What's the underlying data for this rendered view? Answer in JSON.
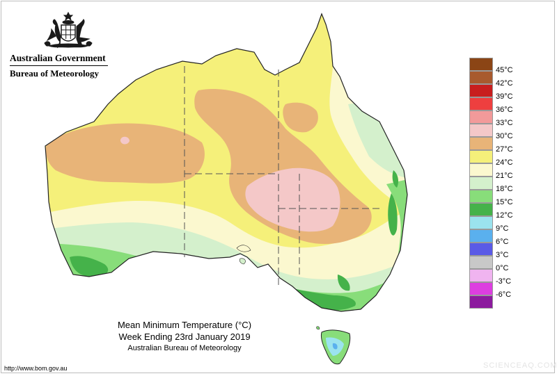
{
  "header": {
    "government": "Australian Government",
    "bureau": "Bureau of Meteorology"
  },
  "map": {
    "region": "Australia",
    "district_line_color": "#555555",
    "fill_colors": {
      "c30_33": "#f4c8c8",
      "c27_30": "#e8b478",
      "c24_27": "#f5f07a",
      "c21_24": "#fbf8cf",
      "c18_21": "#d4f0cc",
      "c15_18": "#88dd7a",
      "c12_15": "#45b24a",
      "c9_12": "#9be3ee"
    }
  },
  "legend": {
    "items": [
      {
        "label": "45°C",
        "color": "#8b4515"
      },
      {
        "label": "42°C",
        "color": "#a85a2e"
      },
      {
        "label": "39°C",
        "color": "#c81e1e"
      },
      {
        "label": "36°C",
        "color": "#ee3f3f"
      },
      {
        "label": "33°C",
        "color": "#f29a9a"
      },
      {
        "label": "30°C",
        "color": "#f4c8c8"
      },
      {
        "label": "27°C",
        "color": "#e8b478"
      },
      {
        "label": "24°C",
        "color": "#f5f07a"
      },
      {
        "label": "21°C",
        "color": "#fbf8cf"
      },
      {
        "label": "18°C",
        "color": "#d4f0cc"
      },
      {
        "label": "15°C",
        "color": "#88dd7a"
      },
      {
        "label": "12°C",
        "color": "#45b24a"
      },
      {
        "label": "9°C",
        "color": "#9be3ee"
      },
      {
        "label": "6°C",
        "color": "#5ab0ee"
      },
      {
        "label": "3°C",
        "color": "#5a5ae6"
      },
      {
        "label": "0°C",
        "color": "#c8c8c8"
      },
      {
        "label": "-3°C",
        "color": "#f0b4f0"
      },
      {
        "label": "-6°C",
        "color": "#dd3ee0"
      },
      {
        "label": "",
        "color": "#8c1a9e"
      }
    ]
  },
  "caption": {
    "title": "Mean Minimum Temperature (°C)",
    "period": "Week Ending 23rd January 2019",
    "source": "Australian Bureau of Meteorology"
  },
  "footer": {
    "url": "http://www.bom.gov.au",
    "watermark": "SCIENCEAQ.COM"
  }
}
